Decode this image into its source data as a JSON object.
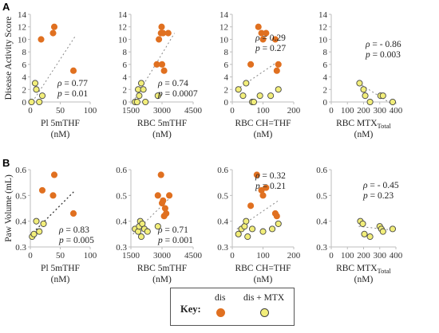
{
  "panels": [
    {
      "letter": "A"
    },
    {
      "letter": "B"
    }
  ],
  "key": {
    "title": "Key:",
    "items": [
      {
        "label": "dis",
        "color": "#e07020",
        "stroke": "#e07020"
      },
      {
        "label": "dis + MTX",
        "color": "#f2ee7a",
        "stroke": "#444444"
      }
    ]
  },
  "chart_data": [
    {
      "type": "scatter",
      "ylabel": "Disease Activity Score",
      "xlabel_lines": [
        "Pl 5mTHF",
        "(nM)"
      ],
      "xticks": [
        0,
        50,
        100
      ],
      "xlim": [
        0,
        100
      ],
      "yticks": [
        0,
        2,
        4,
        6,
        8,
        10,
        12,
        14
      ],
      "ylim": [
        0,
        14
      ],
      "stats": [
        "ρ = 0.77",
        "p = 0.01"
      ],
      "trend": {
        "x": [
          0,
          75
        ],
        "y": [
          -0.5,
          10.5
        ]
      },
      "series": [
        {
          "name": "dis",
          "x": [
            18,
            38,
            40,
            72
          ],
          "y": [
            10,
            11,
            12,
            5
          ]
        },
        {
          "name": "dis + MTX",
          "x": [
            2,
            8,
            10,
            15,
            20
          ],
          "y": [
            0,
            3,
            2,
            0,
            1
          ]
        }
      ]
    },
    {
      "type": "scatter",
      "xlabel_lines": [
        "RBC 5mTHF",
        "(nM)"
      ],
      "xticks": [
        1500,
        3000,
        4500
      ],
      "xlim": [
        1500,
        4500
      ],
      "yticks": [
        0,
        2,
        4,
        6,
        8,
        10,
        12,
        14
      ],
      "ylim": [
        0,
        14
      ],
      "stats": [
        "ρ = 0.74",
        "p = 0.0007"
      ],
      "trend": {
        "x": [
          1600,
          3600
        ],
        "y": [
          0,
          11
        ]
      },
      "series": [
        {
          "name": "dis",
          "x": [
            2750,
            2850,
            2950,
            2980,
            3000,
            3050,
            3100,
            3300
          ],
          "y": [
            6,
            10,
            11,
            12,
            6,
            11,
            5,
            11
          ]
        },
        {
          "name": "dis + MTX",
          "x": [
            1700,
            1800,
            1850,
            1900,
            2000,
            2100,
            2200,
            2800
          ],
          "y": [
            0,
            0,
            2,
            1,
            3,
            2,
            0,
            1
          ]
        }
      ]
    },
    {
      "type": "scatter",
      "xlabel_lines": [
        "RBC CH=THF",
        "(nM)"
      ],
      "xticks": [
        0,
        100,
        200
      ],
      "xlim": [
        0,
        200
      ],
      "yticks": [
        0,
        2,
        4,
        6,
        8,
        10,
        12,
        14
      ],
      "ylim": [
        0,
        14
      ],
      "stats": [
        "ρ = 0.29",
        "p = 0.27"
      ],
      "trend": {
        "x": [
          15,
          150
        ],
        "y": [
          2,
          6.5
        ]
      },
      "series": [
        {
          "name": "dis",
          "x": [
            60,
            85,
            95,
            100,
            110,
            140,
            145,
            150
          ],
          "y": [
            6,
            12,
            11,
            10,
            11,
            10,
            5,
            6
          ]
        },
        {
          "name": "dis + MTX",
          "x": [
            20,
            35,
            45,
            65,
            70,
            90,
            125,
            150
          ],
          "y": [
            2,
            1,
            3,
            0,
            0,
            1,
            1,
            2
          ]
        }
      ]
    },
    {
      "type": "scatter",
      "xlabel_lines": [
        "RBC MTX_Total",
        "(nM)"
      ],
      "xticks": [
        0,
        100,
        200,
        300,
        400
      ],
      "xlim": [
        0,
        400
      ],
      "yticks": [
        0,
        2,
        4,
        6,
        8,
        10,
        12,
        14
      ],
      "ylim": [
        0,
        14
      ],
      "stats": [
        "ρ = - 0.86",
        "p = 0.003"
      ],
      "trend": {
        "x": [
          170,
          385
        ],
        "y": [
          3,
          -0.5
        ]
      },
      "series": [
        {
          "name": "dis + MTX",
          "x": [
            175,
            200,
            210,
            240,
            305,
            320,
            380
          ],
          "y": [
            3,
            2,
            1,
            0,
            1,
            1,
            0
          ]
        }
      ]
    },
    {
      "type": "scatter",
      "ylabel": "Paw Volume (mL)",
      "xlabel_lines": [
        "Pl 5mTHF",
        "(nM)"
      ],
      "xticks": [
        0,
        50,
        100
      ],
      "xlim": [
        0,
        100
      ],
      "yticks": [
        0.3,
        0.4,
        0.5,
        0.6
      ],
      "ylim": [
        0.3,
        0.6
      ],
      "stats": [
        "ρ = 0.83",
        "p = 0.005"
      ],
      "trend": {
        "x": [
          0,
          75
        ],
        "y": [
          0.345,
          0.52
        ]
      },
      "series": [
        {
          "name": "dis",
          "x": [
            20,
            38,
            40,
            72
          ],
          "y": [
            0.52,
            0.5,
            0.58,
            0.43
          ]
        },
        {
          "name": "dis + MTX",
          "x": [
            3,
            6,
            10,
            15,
            22
          ],
          "y": [
            0.34,
            0.35,
            0.4,
            0.36,
            0.39
          ]
        }
      ]
    },
    {
      "type": "scatter",
      "xlabel_lines": [
        "RBC 5mTHF",
        "(nM)"
      ],
      "xticks": [
        1500,
        3000,
        4500
      ],
      "xlim": [
        1500,
        4500
      ],
      "yticks": [
        0.3,
        0.4,
        0.5,
        0.6
      ],
      "ylim": [
        0.3,
        0.6
      ],
      "stats": [
        "ρ = 0.71",
        "p = 0.001"
      ],
      "trend": {
        "x": [
          1600,
          3500
        ],
        "y": [
          0.35,
          0.5
        ]
      },
      "series": [
        {
          "name": "dis",
          "x": [
            2800,
            2950,
            3000,
            3050,
            3100,
            3150,
            3200,
            3350
          ],
          "y": [
            0.5,
            0.58,
            0.47,
            0.48,
            0.42,
            0.45,
            0.43,
            0.5
          ]
        },
        {
          "name": "dis + MTX",
          "x": [
            1700,
            1850,
            1900,
            1950,
            2000,
            2050,
            2150,
            2300,
            2800
          ],
          "y": [
            0.37,
            0.36,
            0.38,
            0.4,
            0.34,
            0.39,
            0.37,
            0.36,
            0.38
          ]
        }
      ]
    },
    {
      "type": "scatter",
      "xlabel_lines": [
        "RBC CH=THF",
        "(nM)"
      ],
      "xticks": [
        0,
        100,
        200
      ],
      "xlim": [
        0,
        200
      ],
      "yticks": [
        0.3,
        0.4,
        0.5,
        0.6
      ],
      "ylim": [
        0.3,
        0.6
      ],
      "stats": [
        "ρ = 0.32",
        "p = 0.21"
      ],
      "trend": {
        "x": [
          15,
          150
        ],
        "y": [
          0.37,
          0.48
        ]
      },
      "series": [
        {
          "name": "dis",
          "x": [
            60,
            80,
            95,
            100,
            110,
            140,
            145
          ],
          "y": [
            0.46,
            0.58,
            0.52,
            0.5,
            0.53,
            0.43,
            0.42
          ]
        },
        {
          "name": "dis + MTX",
          "x": [
            20,
            30,
            40,
            45,
            50,
            65,
            100,
            130,
            150
          ],
          "y": [
            0.35,
            0.37,
            0.38,
            0.4,
            0.34,
            0.37,
            0.36,
            0.37,
            0.39
          ]
        }
      ]
    },
    {
      "type": "scatter",
      "xlabel_lines": [
        "RBC MTX_Total",
        "(nM)"
      ],
      "xticks": [
        0,
        100,
        200,
        300,
        400
      ],
      "xlim": [
        0,
        400
      ],
      "yticks": [
        0.3,
        0.4,
        0.5,
        0.6
      ],
      "ylim": [
        0.3,
        0.6
      ],
      "stats": [
        "ρ = - 0.45",
        "p = 0.23"
      ],
      "trend": {
        "x": [
          170,
          385
        ],
        "y": [
          0.38,
          0.365
        ]
      },
      "series": [
        {
          "name": "dis + MTX",
          "x": [
            180,
            195,
            205,
            240,
            300,
            310,
            320,
            380
          ],
          "y": [
            0.4,
            0.39,
            0.35,
            0.34,
            0.38,
            0.37,
            0.36,
            0.37
          ]
        }
      ]
    }
  ]
}
